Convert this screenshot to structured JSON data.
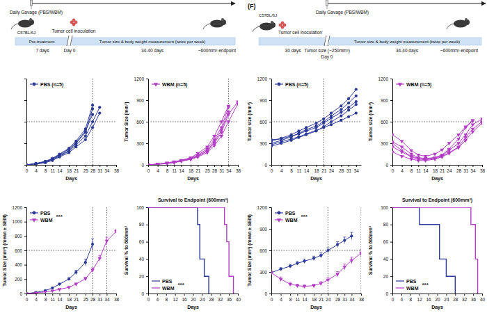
{
  "chart_data": [
    {
      "type": "line",
      "xlabel": "Days",
      "xlim": [
        0,
        38
      ],
      "xticks": [
        0,
        4,
        8,
        11,
        14,
        18,
        21,
        25,
        28,
        31,
        34,
        38
      ],
      "ylim": [
        0,
        1200
      ],
      "yticks": [
        0,
        300,
        600,
        900,
        1200
      ],
      "tick_labels": "x",
      "legend": "top-left",
      "hline": 600,
      "vlines": [
        28
      ],
      "series": [
        {
          "name": "PBS (n=5)",
          "color": "#2b3a97",
          "marker": "circle",
          "x": [
            0,
            4,
            8,
            11,
            14,
            18,
            21,
            25,
            28,
            31
          ],
          "values": [
            [
              0,
              20,
              50,
              90,
              150,
              230,
              330,
              500,
              830,
              null
            ],
            [
              0,
              15,
              40,
              80,
              130,
              200,
              300,
              450,
              780,
              null
            ],
            [
              0,
              10,
              35,
              70,
              120,
              190,
              280,
              400,
              600,
              800
            ],
            [
              0,
              12,
              30,
              60,
              110,
              170,
              250,
              350,
              520,
              720
            ],
            [
              0,
              18,
              45,
              85,
              140,
              220,
              310,
              470,
              700,
              null
            ]
          ]
        }
      ]
    },
    {
      "type": "line",
      "xlabel": "Days",
      "ylabel": "Tumor Size (mm³)",
      "xlim": [
        0,
        38
      ],
      "xticks": [
        0,
        4,
        8,
        11,
        14,
        18,
        21,
        25,
        28,
        31,
        34,
        38
      ],
      "ylim": [
        0,
        1200
      ],
      "yticks": [
        0,
        300,
        600,
        900,
        1200
      ],
      "legend": "top-left",
      "hline": 600,
      "vlines": [
        34
      ],
      "series": [
        {
          "name": "WBM (n=5)",
          "color": "#b23ec4",
          "marker": "triangle-down",
          "x": [
            0,
            4,
            8,
            11,
            14,
            18,
            21,
            25,
            28,
            31,
            34,
            38
          ],
          "values": [
            [
              0,
              10,
              25,
              40,
              60,
              90,
              140,
              220,
              350,
              520,
              800,
              null
            ],
            [
              0,
              8,
              20,
              35,
              55,
              80,
              120,
              190,
              300,
              450,
              700,
              880
            ],
            [
              0,
              12,
              28,
              45,
              65,
              100,
              160,
              250,
              400,
              600,
              820,
              null
            ],
            [
              0,
              6,
              18,
              30,
              50,
              75,
              110,
              170,
              270,
              400,
              600,
              850
            ],
            [
              0,
              10,
              22,
              38,
              58,
              85,
              130,
              200,
              320,
              480,
              740,
              null
            ]
          ]
        }
      ]
    },
    {
      "type": "line",
      "xlabel": "Days",
      "ylabel": "Tumor Size (mm³) (mean ± SEM)",
      "xlim": [
        0,
        38
      ],
      "xticks": [
        0,
        4,
        8,
        11,
        14,
        18,
        21,
        25,
        28,
        31,
        34,
        38
      ],
      "ylim": [
        0,
        1200
      ],
      "yticks": [
        0,
        200,
        400,
        600,
        800,
        1000,
        1200
      ],
      "legend": "top-left",
      "annotation": "***",
      "hline": 600,
      "vlines": [
        28,
        34
      ],
      "series": [
        {
          "name": "PBS",
          "color": "#2b3a97",
          "marker": "circle",
          "x": [
            0,
            4,
            8,
            11,
            14,
            18,
            21,
            25,
            28
          ],
          "values": [
            0,
            15,
            40,
            77,
            130,
            202,
            294,
            434,
            686
          ],
          "error": [
            0,
            5,
            8,
            10,
            15,
            20,
            30,
            45,
            75
          ]
        },
        {
          "name": "WBM",
          "color": "#b23ec4",
          "marker": "triangle-down",
          "x": [
            0,
            4,
            8,
            11,
            14,
            18,
            21,
            25,
            28,
            31,
            34,
            38
          ],
          "values": [
            0,
            9,
            23,
            38,
            58,
            86,
            132,
            206,
            328,
            490,
            732,
            865
          ],
          "error": [
            0,
            3,
            5,
            6,
            8,
            10,
            15,
            20,
            30,
            40,
            50,
            30
          ]
        }
      ]
    },
    {
      "type": "step",
      "title": "Survival to Endpoint (600mm³)",
      "xlabel": "Days",
      "ylabel": "Survival % to 600mm³",
      "xlim": [
        0,
        40
      ],
      "xticks": [
        0,
        4,
        8,
        12,
        16,
        20,
        24,
        28,
        32,
        36,
        40
      ],
      "ylim": [
        0,
        100
      ],
      "yticks": [
        0,
        20,
        40,
        60,
        80,
        100
      ],
      "legend": "bottom-left",
      "annotation": "***",
      "series": [
        {
          "name": "PBS",
          "color": "#2b3a97",
          "x": [
            0,
            22,
            23,
            25,
            27
          ],
          "values": [
            100,
            80,
            40,
            20,
            0
          ]
        },
        {
          "name": "WBM",
          "color": "#b23ec4",
          "x": [
            0,
            34,
            35,
            36,
            38
          ],
          "values": [
            100,
            80,
            60,
            20,
            0
          ]
        }
      ]
    },
    {
      "type": "line",
      "xlabel": "Days",
      "ylabel": "Tumor size (mm³)",
      "xlim": [
        0,
        36
      ],
      "xticks": [
        0,
        4,
        8,
        11,
        14,
        18,
        21,
        24,
        28,
        31,
        34
      ],
      "ylim": [
        0,
        1200
      ],
      "yticks": [
        0,
        300,
        600,
        900,
        1200
      ],
      "legend": "top-left",
      "hline": 600,
      "vlines": [
        21
      ],
      "series": [
        {
          "name": "PBS (n=5)",
          "color": "#2b3a97",
          "marker": "circle",
          "x": [
            0,
            4,
            8,
            11,
            14,
            18,
            21,
            24,
            28,
            31,
            34
          ],
          "values": [
            [
              330,
              370,
              420,
              470,
              520,
              580,
              640,
              720,
              820,
              920,
              1050
            ],
            [
              300,
              340,
              390,
              440,
              490,
              540,
              600,
              680,
              770,
              860,
              960
            ],
            [
              350,
              360,
              400,
              430,
              470,
              520,
              580,
              650,
              730,
              800,
              880
            ],
            [
              260,
              300,
              340,
              380,
              420,
              470,
              530,
              600,
              680,
              760,
              840
            ],
            [
              280,
              320,
              360,
              390,
              430,
              480,
              520,
              560,
              620,
              670,
              720
            ]
          ]
        }
      ]
    },
    {
      "type": "line",
      "xlabel": "Days",
      "ylabel": "Tumor size (mm³)",
      "xlim": [
        0,
        38
      ],
      "xticks": [
        0,
        4,
        8,
        11,
        14,
        18,
        21,
        24,
        28,
        31,
        34,
        38
      ],
      "ylim": [
        0,
        1200
      ],
      "yticks": [
        0,
        300,
        600,
        900,
        1200
      ],
      "legend": "top-left",
      "hline": 600,
      "series": [
        {
          "name": "WBM (n=5)",
          "color": "#b23ec4",
          "marker": "triangle-down",
          "x": [
            0,
            4,
            8,
            11,
            14,
            18,
            21,
            24,
            28,
            31,
            34,
            38
          ],
          "values": [
            [
              420,
              330,
              200,
              140,
              120,
              150,
              210,
              300,
              420,
              530,
              620,
              null
            ],
            [
              320,
              250,
              150,
              100,
              90,
              100,
              130,
              200,
              300,
              420,
              560,
              640
            ],
            [
              250,
              180,
              110,
              80,
              70,
              90,
              120,
              170,
              250,
              380,
              500,
              600
            ],
            [
              180,
              120,
              80,
              60,
              60,
              80,
              110,
              160,
              240,
              340,
              460,
              580
            ],
            [
              300,
              200,
              120,
              90,
              80,
              100,
              140,
              220,
              360,
              520,
              610,
              null
            ]
          ]
        }
      ]
    },
    {
      "type": "line",
      "xlabel": "Days",
      "ylabel": "Tumor Size (mm³) (mean ± SEM)",
      "xlim": [
        0,
        38
      ],
      "xticks": [
        0,
        4,
        8,
        11,
        14,
        18,
        21,
        24,
        28,
        31,
        34,
        38
      ],
      "ylim": [
        0,
        1200
      ],
      "yticks": [
        0,
        300,
        600,
        900,
        1200
      ],
      "legend": "top-left",
      "annotation": "***",
      "hline": 600,
      "vlines": [
        24,
        38
      ],
      "series": [
        {
          "name": "PBS",
          "color": "#2b3a97",
          "marker": "circle",
          "x": [
            0,
            4,
            8,
            11,
            14,
            18,
            21,
            24,
            28,
            31,
            34
          ],
          "values": [
            290,
            340,
            380,
            420,
            450,
            490,
            530,
            600,
            680,
            740,
            800
          ],
          "error": [
            20,
            20,
            25,
            25,
            30,
            30,
            35,
            35,
            40,
            45,
            50
          ]
        },
        {
          "name": "WBM",
          "color": "#b23ec4",
          "marker": "triangle-down",
          "x": [
            0,
            4,
            8,
            11,
            14,
            18,
            21,
            24,
            28,
            31,
            34,
            38
          ],
          "values": [
            290,
            200,
            130,
            110,
            100,
            110,
            140,
            190,
            270,
            370,
            460,
            560
          ],
          "error": [
            25,
            30,
            25,
            20,
            20,
            20,
            25,
            30,
            35,
            40,
            45,
            50
          ]
        }
      ]
    },
    {
      "type": "step",
      "title": "Survival to Endpoint (600mm³)",
      "xlabel": "Days",
      "ylabel": "Survival % to 600mm³",
      "xlim": [
        0,
        40
      ],
      "xticks": [
        0,
        4,
        8,
        12,
        16,
        20,
        24,
        28,
        32,
        36,
        40
      ],
      "ylim": [
        0,
        100
      ],
      "yticks": [
        0,
        20,
        40,
        60,
        80,
        100
      ],
      "legend": "bottom-left",
      "annotation": "***",
      "series": [
        {
          "name": "PBS",
          "color": "#2b3a97",
          "x": [
            0,
            12,
            21,
            24,
            28
          ],
          "values": [
            100,
            80,
            40,
            20,
            0
          ]
        },
        {
          "name": "WBM",
          "color": "#b23ec4",
          "x": [
            0,
            35,
            37,
            38
          ],
          "values": [
            100,
            80,
            40,
            0
          ]
        }
      ]
    }
  ],
  "schematics": [
    {
      "gavage": "Daily Gavage (PBS/WBM)",
      "mouse": "C57BL/6J",
      "phases": [
        "Pre-treatment",
        "Tumor size & body weight measurement (twice per week)"
      ],
      "inoculation": "Tumor cell inoculation",
      "day0": "Day 0",
      "durations": [
        "7 days",
        "34-40 days"
      ],
      "endpoint": "~600mm³ endpoint"
    },
    {
      "label": "(F)",
      "mouse": "C57BL/6J",
      "inoculation": "Tumor cell inoculation",
      "gavage": "Daily Gavage (PBS/WBM)",
      "tumor_size": "Tumor size (~250mm³)",
      "day0": "Day 0",
      "phases": [
        "Tumor size & body weight measurement (twice per week)"
      ],
      "durations": [
        "30 days",
        "34-40 days"
      ],
      "endpoint": "~600mm³ endpoint"
    }
  ]
}
